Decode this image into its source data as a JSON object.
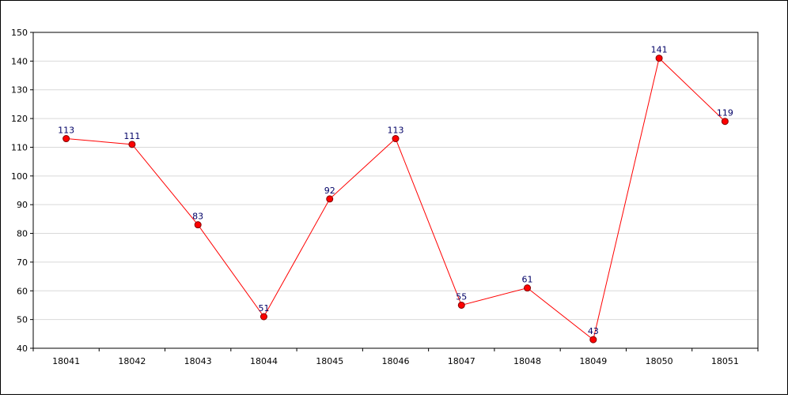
{
  "chart_data": {
    "type": "line",
    "title": "",
    "xlabel": "",
    "ylabel": "",
    "categories": [
      "18041",
      "18042",
      "18043",
      "18044",
      "18045",
      "18046",
      "18047",
      "18048",
      "18049",
      "18050",
      "18051"
    ],
    "values": [
      113,
      111,
      83,
      51,
      92,
      113,
      55,
      61,
      43,
      141,
      119
    ],
    "data_labels": [
      "113",
      "111",
      "83",
      "51",
      "92",
      "113",
      "55",
      "61",
      "43",
      "141",
      "119"
    ],
    "ylim": [
      40,
      150
    ],
    "yticks": [
      40,
      50,
      60,
      70,
      80,
      90,
      100,
      110,
      120,
      130,
      140,
      150
    ],
    "ytick_labels": [
      "40",
      "50",
      "60",
      "70",
      "80",
      "90",
      "100",
      "110",
      "120",
      "130",
      "140",
      "150"
    ],
    "grid": "horizontal",
    "legend": "none",
    "colors": {
      "line": "#ff0000",
      "marker_fill": "#ff0000",
      "marker_stroke": "#800000",
      "data_label": "#000066",
      "grid": "#d9d9d9",
      "axis": "#000000"
    }
  }
}
